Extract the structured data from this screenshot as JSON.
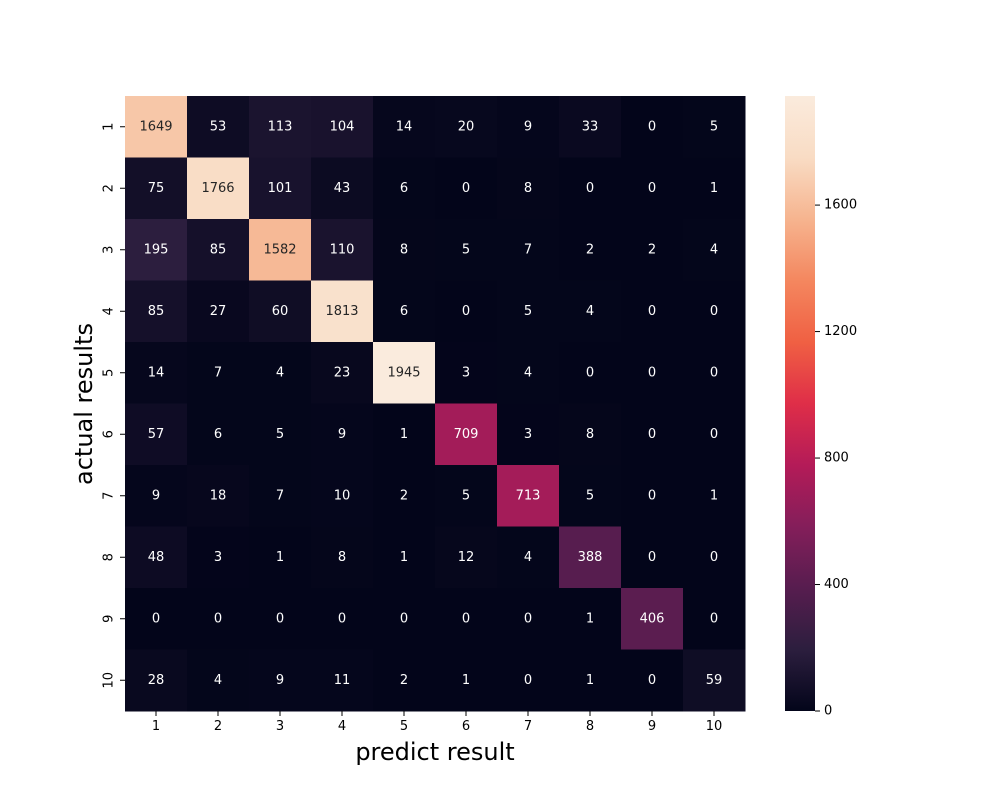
{
  "chart_data": {
    "type": "heatmap",
    "title": "",
    "xlabel": "predict result",
    "ylabel": "actual results",
    "x_categories": [
      "1",
      "2",
      "3",
      "4",
      "5",
      "6",
      "7",
      "8",
      "9",
      "10"
    ],
    "y_categories": [
      "1",
      "2",
      "3",
      "4",
      "5",
      "6",
      "7",
      "8",
      "9",
      "10"
    ],
    "values": [
      [
        1649,
        53,
        113,
        104,
        14,
        20,
        9,
        33,
        0,
        5
      ],
      [
        75,
        1766,
        101,
        43,
        6,
        0,
        8,
        0,
        0,
        1
      ],
      [
        195,
        85,
        1582,
        110,
        8,
        5,
        7,
        2,
        2,
        4
      ],
      [
        85,
        27,
        60,
        1813,
        6,
        0,
        5,
        4,
        0,
        0
      ],
      [
        14,
        7,
        4,
        23,
        1945,
        3,
        4,
        0,
        0,
        0
      ],
      [
        57,
        6,
        5,
        9,
        1,
        709,
        3,
        8,
        0,
        0
      ],
      [
        9,
        18,
        7,
        10,
        2,
        5,
        713,
        5,
        0,
        1
      ],
      [
        48,
        3,
        1,
        8,
        1,
        12,
        4,
        388,
        0,
        0
      ],
      [
        0,
        0,
        0,
        0,
        0,
        0,
        0,
        1,
        406,
        0
      ],
      [
        28,
        4,
        9,
        11,
        2,
        1,
        0,
        1,
        0,
        59
      ]
    ],
    "colorbar": {
      "range": [
        0,
        1945
      ],
      "ticks": [
        "0",
        "400",
        "800",
        "1200",
        "1600"
      ],
      "tick_values": [
        0,
        400,
        800,
        1200,
        1600
      ]
    },
    "colormap": [
      "#03051a",
      "#2c1e3e",
      "#571d4f",
      "#841e5a",
      "#b41b58",
      "#df2e48",
      "#f06043",
      "#f4875f",
      "#f6b48f",
      "#f9dcc4",
      "#faebdd"
    ],
    "grid": false,
    "legend": "none"
  }
}
